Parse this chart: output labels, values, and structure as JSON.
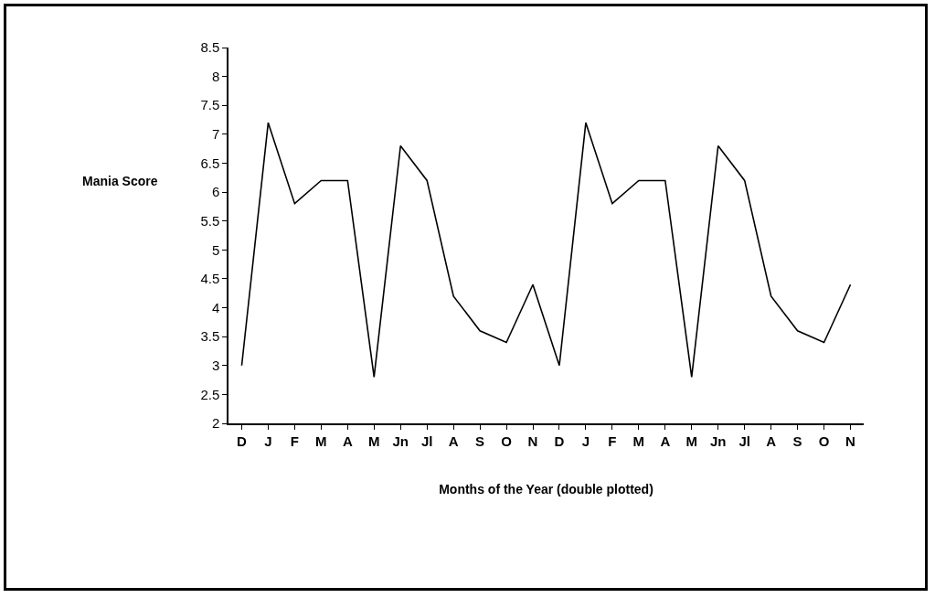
{
  "chart_data": {
    "type": "line",
    "xlabel": "Months of the Year (double plotted)",
    "ylabel": "Mania Score",
    "categories": [
      "D",
      "J",
      "F",
      "M",
      "A",
      "M",
      "Jn",
      "Jl",
      "A",
      "S",
      "O",
      "N",
      "D",
      "J",
      "F",
      "M",
      "A",
      "M",
      "Jn",
      "Jl",
      "A",
      "S",
      "O",
      "N"
    ],
    "series": [
      {
        "color": "#000000",
        "values": [
          3.0,
          7.2,
          5.8,
          6.2,
          6.2,
          2.8,
          6.8,
          6.2,
          4.2,
          3.6,
          3.4,
          4.4,
          3.0,
          7.2,
          5.8,
          6.2,
          6.2,
          2.8,
          6.8,
          6.2,
          4.2,
          3.6,
          3.4,
          4.4
        ]
      }
    ],
    "ylim": [
      2,
      8.5
    ],
    "yticks": [
      2,
      2.5,
      3,
      3.5,
      4,
      4.5,
      5,
      5.5,
      6,
      6.5,
      7,
      7.5,
      8,
      8.5
    ],
    "grid": false,
    "marker": "none",
    "line_style": "solid"
  }
}
